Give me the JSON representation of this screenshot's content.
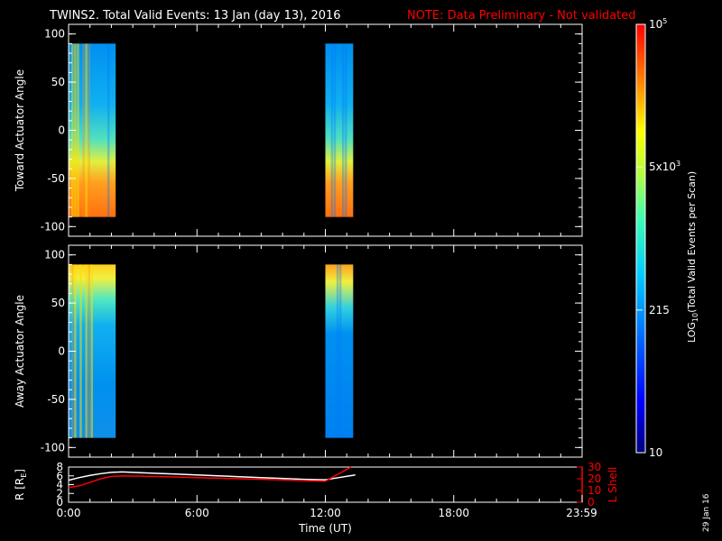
{
  "title": {
    "main": "TWINS2. Total Valid Events: 13 Jan (day  13), 2016",
    "note": "NOTE: Data Preliminary - Not validated",
    "note_color": "#ff0000"
  },
  "date_stamp": "29 Jan 16",
  "chart_data": [
    {
      "type": "heatmap",
      "name": "toward",
      "ylabel": "Toward Actuator Angle",
      "ylim": [
        -110,
        110
      ],
      "yticks": [
        "100",
        "50",
        "0",
        "-50",
        "-100"
      ],
      "ytick_values": [
        100,
        50,
        0,
        -50,
        -100
      ],
      "data_y_range": [
        -90,
        90
      ],
      "data_blocks": [
        {
          "time_start_h": 0.0,
          "time_end_h": 2.2,
          "angle_range": [
            -90,
            90
          ]
        },
        {
          "time_start_h": 12.0,
          "time_end_h": 13.3,
          "angle_range": [
            -90,
            90
          ]
        }
      ]
    },
    {
      "type": "heatmap",
      "name": "away",
      "ylabel": "Away Actuator Angle",
      "ylim": [
        -110,
        110
      ],
      "yticks": [
        "100",
        "50",
        "0",
        "-50",
        "-100"
      ],
      "ytick_values": [
        100,
        50,
        0,
        -50,
        -100
      ],
      "data_y_range": [
        -90,
        90
      ],
      "data_blocks": [
        {
          "time_start_h": 0.0,
          "time_end_h": 2.2,
          "angle_range": [
            -90,
            90
          ]
        },
        {
          "time_start_h": 12.0,
          "time_end_h": 13.3,
          "angle_range": [
            -90,
            90
          ]
        }
      ]
    },
    {
      "type": "line",
      "name": "ephemeris",
      "ylabel_left": "R [R",
      "ylabel_left_sub": "E",
      "ylabel_left_close": "]",
      "ylabel_right": "L Shell",
      "right_color": "#ff0000",
      "ylim_left": [
        0,
        8
      ],
      "ylim_right": [
        0,
        30
      ],
      "left_ticks": [
        "8",
        "6",
        "4",
        "2",
        "0"
      ],
      "left_tick_values": [
        8,
        6,
        4,
        2,
        0
      ],
      "right_ticks": [
        "30",
        "20",
        "10",
        "0"
      ],
      "right_tick_values": [
        30,
        20,
        10,
        0
      ],
      "xlabel": "Time (UT)",
      "xticks": [
        "0:00",
        "6:00",
        "12:00",
        "18:00",
        "23:59"
      ],
      "xtick_values": [
        0,
        6,
        12,
        18,
        23.98
      ],
      "xlim": [
        0,
        24
      ],
      "series": [
        {
          "name": "R",
          "color": "#ffffff",
          "axis": "left",
          "x": [
            0,
            0.5,
            1.0,
            1.5,
            2.0,
            2.5,
            3.0,
            4,
            5,
            6,
            7,
            8,
            9,
            10,
            11,
            12,
            12.5,
            13,
            13.4
          ],
          "y": [
            5.0,
            5.6,
            6.1,
            6.5,
            6.8,
            6.9,
            6.8,
            6.6,
            6.4,
            6.2,
            6.0,
            5.8,
            5.6,
            5.4,
            5.2,
            5.1,
            5.5,
            5.9,
            6.2
          ]
        },
        {
          "name": "L Shell",
          "color": "#ff0000",
          "axis": "right",
          "x": [
            0,
            0.5,
            1.0,
            1.5,
            2.0,
            2.5,
            3.0,
            4,
            5,
            6,
            7,
            8,
            9,
            10,
            11,
            12,
            12.5,
            13,
            13.2
          ],
          "y": [
            12.5,
            14,
            17,
            20,
            22,
            22.5,
            22.3,
            22,
            21.5,
            21,
            20.5,
            20,
            19.5,
            19,
            18.5,
            18,
            23,
            28,
            30
          ]
        }
      ]
    }
  ],
  "colorbar": {
    "label_log": "LOG",
    "label_sub": "10",
    "label_rest": "(Total Valid  Events per Scan)",
    "ticks": [
      {
        "label": "10",
        "frac": 0.0
      },
      {
        "label": "215",
        "frac": 0.333
      },
      {
        "label": "5x10",
        "sup": "3",
        "frac": 0.667
      },
      {
        "label": "10",
        "sup": "5",
        "frac": 1.0
      }
    ]
  }
}
